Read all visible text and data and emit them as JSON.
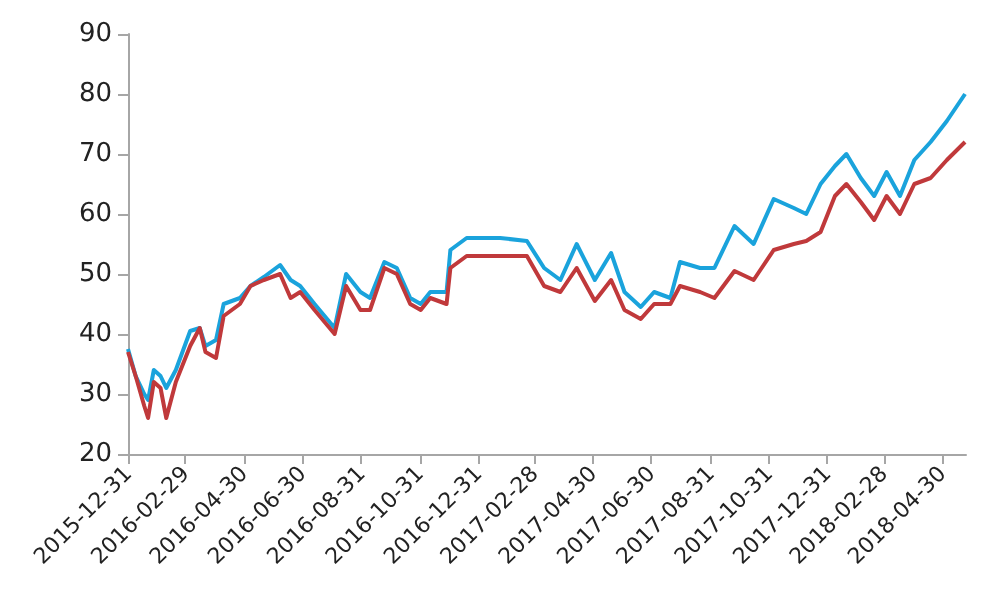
{
  "chart_data": {
    "type": "line",
    "x": [
      "2015-12-31",
      "2016-01-08",
      "2016-01-17",
      "2016-01-21",
      "2016-01-27",
      "2016-02-03",
      "2016-02-09",
      "2016-02-19",
      "2016-03-05",
      "2016-03-15",
      "2016-03-21",
      "2016-04-01",
      "2016-04-09",
      "2016-04-26",
      "2016-05-07",
      "2016-05-21",
      "2016-06-07",
      "2016-06-18",
      "2016-06-28",
      "2016-07-13",
      "2016-08-03",
      "2016-08-15",
      "2016-08-30",
      "2016-09-09",
      "2016-09-24",
      "2016-10-07",
      "2016-10-21",
      "2016-11-01",
      "2016-11-11",
      "2016-11-28",
      "2016-12-02",
      "2016-12-19",
      "2017-01-03",
      "2017-01-23",
      "2017-02-20",
      "2017-03-10",
      "2017-03-27",
      "2017-04-13",
      "2017-05-02",
      "2017-05-19",
      "2017-06-02",
      "2017-06-19",
      "2017-07-03",
      "2017-07-20",
      "2017-07-30",
      "2017-08-20",
      "2017-09-04",
      "2017-09-25",
      "2017-10-15",
      "2017-11-05",
      "2017-11-26",
      "2017-12-09",
      "2017-12-24",
      "2018-01-08",
      "2018-01-20",
      "2018-02-04",
      "2018-02-18",
      "2018-03-03",
      "2018-03-17",
      "2018-04-01",
      "2018-04-18",
      "2018-05-05",
      "2018-05-24"
    ],
    "series": [
      {
        "color": "#1aa3dc",
        "values": [
          37.5,
          33,
          30,
          29,
          34,
          33,
          31,
          34,
          40.5,
          41,
          38,
          39,
          45,
          46,
          48,
          49.5,
          51.5,
          49,
          48,
          45,
          41,
          50,
          47,
          46,
          52,
          51,
          46,
          45,
          47,
          47,
          54,
          56,
          56,
          56,
          55.5,
          51,
          49,
          55,
          49,
          53.5,
          47,
          44.5,
          47,
          46,
          52,
          51,
          51,
          58,
          55,
          62.5,
          61,
          60,
          65,
          68,
          70,
          66,
          63,
          67,
          63,
          69,
          72,
          75.5,
          80
        ]
      },
      {
        "color": "#c0393b",
        "values": [
          37,
          33,
          28,
          26,
          32,
          31,
          26,
          32,
          38,
          41,
          37,
          36,
          43,
          45,
          48,
          49,
          50,
          46,
          47,
          44,
          40,
          48,
          44,
          44,
          51,
          50,
          45,
          44,
          46,
          45,
          51,
          53,
          53,
          53,
          53,
          48,
          47,
          51,
          45.5,
          49,
          44,
          42.5,
          45,
          45,
          48,
          47,
          46,
          50.5,
          49,
          54,
          55,
          55.5,
          57,
          63,
          65,
          62,
          59,
          63,
          60,
          65,
          66,
          69,
          72
        ]
      }
    ],
    "xlim": [
      "2015-12-31",
      "2018-05-25"
    ],
    "xticks": [
      "2015-12-31",
      "2016-02-29",
      "2016-04-30",
      "2016-06-30",
      "2016-08-31",
      "2016-10-31",
      "2016-12-31",
      "2017-02-28",
      "2017-04-30",
      "2017-06-30",
      "2017-08-31",
      "2017-10-31",
      "2017-12-31",
      "2018-02-28",
      "2018-04-30"
    ],
    "ylim": [
      20,
      90
    ],
    "yticks": [
      20,
      30,
      40,
      50,
      60,
      70,
      80,
      90
    ],
    "grid": false,
    "marker": "none",
    "line_style": "solid"
  }
}
